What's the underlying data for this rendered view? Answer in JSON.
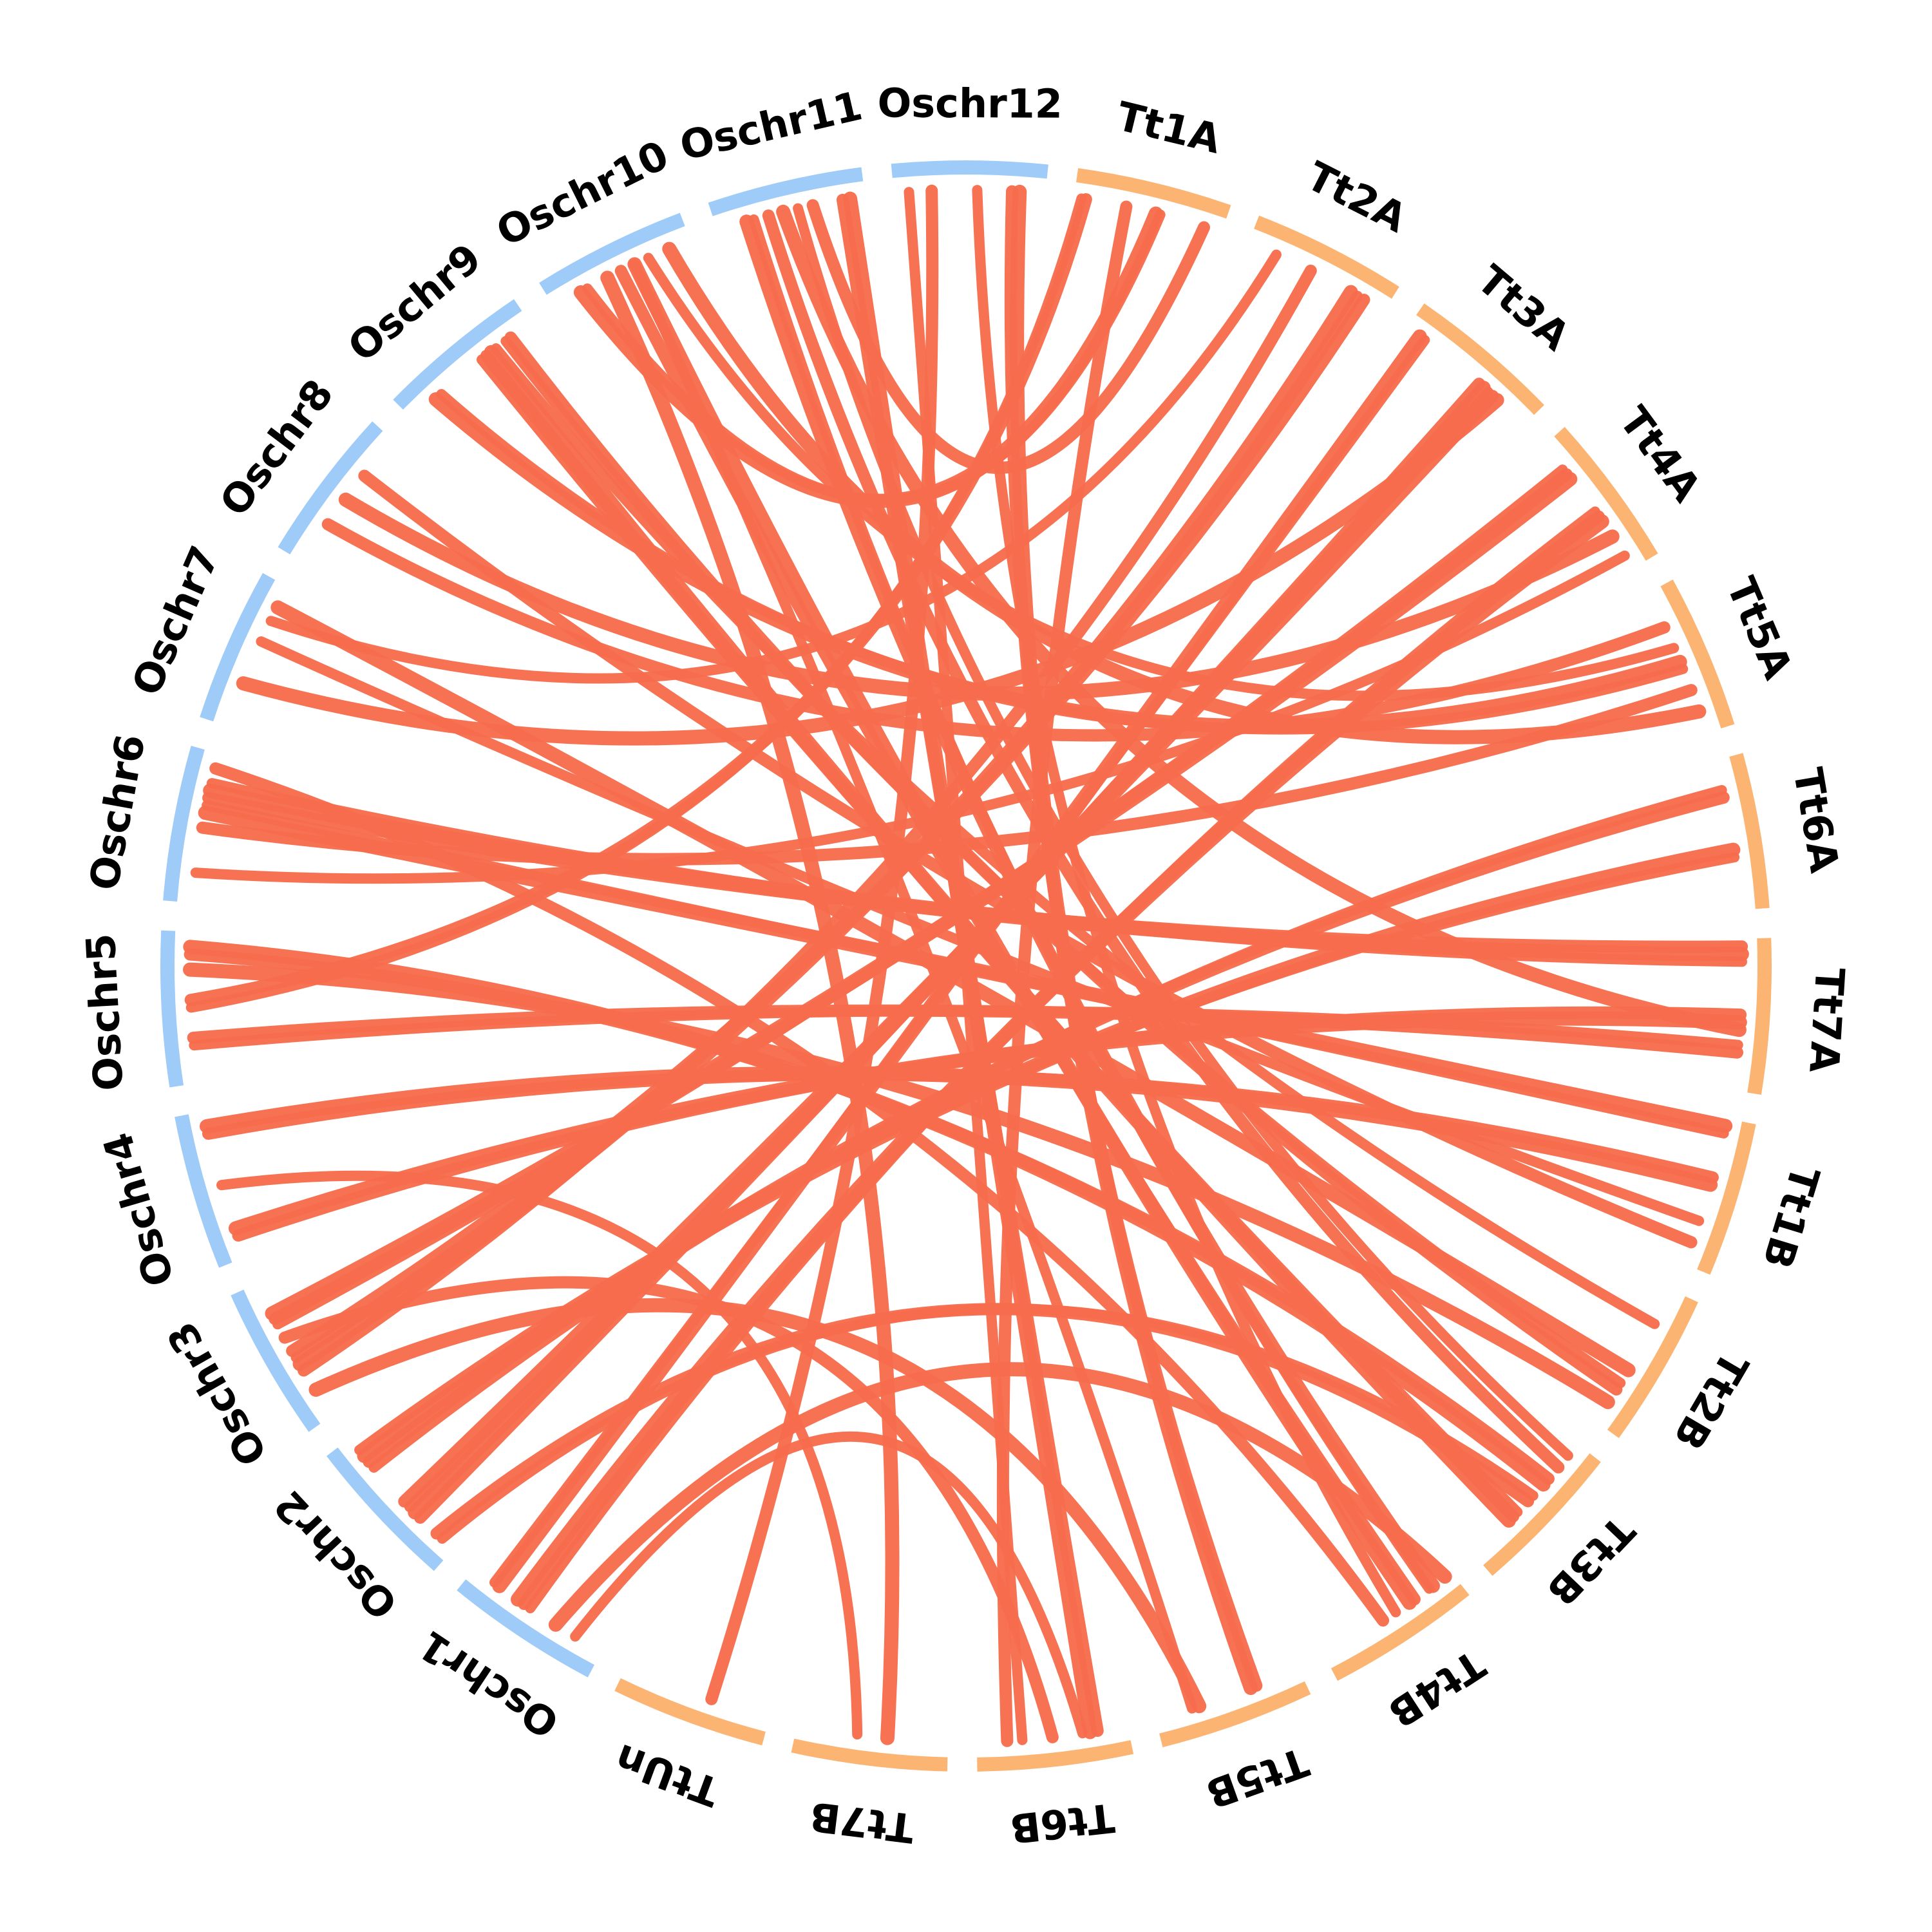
{
  "colors": {
    "rice": "#9ecbf8",
    "wheat": "#fcb472",
    "link": "#f76c4c",
    "label": "#000000"
  },
  "chromosomes": [
    {
      "id": "Tt1A",
      "label": "Tt1A",
      "group": "wheat"
    },
    {
      "id": "Tt2A",
      "label": "Tt2A",
      "group": "wheat"
    },
    {
      "id": "Tt3A",
      "label": "Tt3A",
      "group": "wheat"
    },
    {
      "id": "Tt4A",
      "label": "Tt4A",
      "group": "wheat"
    },
    {
      "id": "Tt5A",
      "label": "Tt5A",
      "group": "wheat"
    },
    {
      "id": "Tt6A",
      "label": "Tt6A",
      "group": "wheat"
    },
    {
      "id": "Tt7A",
      "label": "Tt7A",
      "group": "wheat"
    },
    {
      "id": "Tt1B",
      "label": "Tt1B",
      "group": "wheat"
    },
    {
      "id": "Tt2B",
      "label": "Tt2B",
      "group": "wheat"
    },
    {
      "id": "Tt3B",
      "label": "Tt3B",
      "group": "wheat"
    },
    {
      "id": "Tt4B",
      "label": "Tt4B",
      "group": "wheat"
    },
    {
      "id": "Tt5B",
      "label": "Tt5B",
      "group": "wheat"
    },
    {
      "id": "Tt6B",
      "label": "Tt6B",
      "group": "wheat"
    },
    {
      "id": "Tt7B",
      "label": "Tt7B",
      "group": "wheat"
    },
    {
      "id": "TtUn",
      "label": "TtUn",
      "group": "wheat"
    },
    {
      "id": "Oschr1",
      "label": "Oschr1",
      "group": "rice"
    },
    {
      "id": "Oschr2",
      "label": "Oschr2",
      "group": "rice"
    },
    {
      "id": "Oschr3",
      "label": "Oschr3",
      "group": "rice"
    },
    {
      "id": "Oschr4",
      "label": "Oschr4",
      "group": "rice"
    },
    {
      "id": "Oschr5",
      "label": "Oschr5",
      "group": "rice"
    },
    {
      "id": "Oschr6",
      "label": "Oschr6",
      "group": "rice"
    },
    {
      "id": "Oschr7",
      "label": "Oschr7",
      "group": "rice"
    },
    {
      "id": "Oschr8",
      "label": "Oschr8",
      "group": "rice"
    },
    {
      "id": "Oschr9",
      "label": "Oschr9",
      "group": "rice"
    },
    {
      "id": "Oschr10",
      "label": "Oschr10",
      "group": "rice"
    },
    {
      "id": "Oschr11",
      "label": "Oschr11",
      "group": "rice"
    },
    {
      "id": "Oschr12",
      "label": "Oschr12",
      "group": "rice"
    }
  ],
  "links": [
    {
      "from": "Oschr12",
      "f": 0.1,
      "to": "Tt6B",
      "t": 0.7
    },
    {
      "from": "Oschr12",
      "f": 0.78,
      "to": "Tt5B",
      "t": 0.3
    },
    {
      "from": "Oschr12",
      "f": 0.83,
      "to": "Tt5B",
      "t": 0.34
    },
    {
      "from": "Tt1A",
      "f": 0.05,
      "to": "Oschr5",
      "t": 0.5
    },
    {
      "from": "Tt1A",
      "f": 0.08,
      "to": "Oschr5",
      "t": 0.55
    },
    {
      "from": "Tt1A",
      "f": 0.55,
      "to": "Oschr10",
      "t": 0.2
    },
    {
      "from": "Tt1A",
      "f": 0.58,
      "to": "Oschr10",
      "t": 0.25
    },
    {
      "from": "Tt1A",
      "f": 0.88,
      "to": "Oschr11",
      "t": 0.65
    },
    {
      "from": "Oschr11",
      "f": 0.2,
      "to": "Tt4B",
      "t": 0.15
    },
    {
      "from": "Oschr11",
      "f": 0.25,
      "to": "Tt4B",
      "t": 0.18
    },
    {
      "from": "Oschr11",
      "f": 0.35,
      "to": "Tt3B",
      "t": 0.2
    },
    {
      "from": "Oschr11",
      "f": 0.45,
      "to": "Tt7A",
      "t": 0.6
    },
    {
      "from": "Oschr10",
      "f": 0.7,
      "to": "Tt5A",
      "t": 0.4
    },
    {
      "from": "Oschr10",
      "f": 0.5,
      "to": "Tt4B",
      "t": 0.3
    },
    {
      "from": "Oschr10",
      "f": 0.6,
      "to": "Tt4B",
      "t": 0.34
    },
    {
      "from": "Oschr9",
      "f": 0.6,
      "to": "Tt3B",
      "t": 0.6
    },
    {
      "from": "Oschr9",
      "f": 0.64,
      "to": "Tt3B",
      "t": 0.64
    },
    {
      "from": "Oschr9",
      "f": 0.68,
      "to": "Tt3B",
      "t": 0.68
    },
    {
      "from": "Oschr9",
      "f": 0.72,
      "to": "Tt2B",
      "t": 0.25
    },
    {
      "from": "Tt2A",
      "f": 0.45,
      "to": "Oschr3",
      "t": 0.35
    },
    {
      "from": "Tt2A",
      "f": 0.75,
      "to": "Oschr3",
      "t": 0.4
    },
    {
      "from": "Tt2A",
      "f": 0.8,
      "to": "Oschr3",
      "t": 0.45
    },
    {
      "from": "Tt2A",
      "f": 0.85,
      "to": "Oschr3",
      "t": 0.5
    },
    {
      "from": "Tt3A",
      "f": 0.1,
      "to": "Oschr1",
      "t": 0.8
    },
    {
      "from": "Tt3A",
      "f": 0.14,
      "to": "Oschr1",
      "t": 0.84
    },
    {
      "from": "Tt3A",
      "f": 0.6,
      "to": "Oschr2",
      "t": 0.3
    },
    {
      "from": "Tt3A",
      "f": 0.64,
      "to": "Oschr2",
      "t": 0.35
    },
    {
      "from": "Tt3A",
      "f": 0.68,
      "to": "Oschr2",
      "t": 0.4
    },
    {
      "from": "Tt3A",
      "f": 0.72,
      "to": "Oschr2",
      "t": 0.45
    },
    {
      "from": "Tt3A",
      "f": 0.76,
      "to": "Oschr7",
      "t": 0.3
    },
    {
      "from": "Tt4A",
      "f": 0.2,
      "to": "Oschr3",
      "t": 0.7
    },
    {
      "from": "Tt4A",
      "f": 0.24,
      "to": "Oschr3",
      "t": 0.74
    },
    {
      "from": "Tt4A",
      "f": 0.28,
      "to": "Oschr3",
      "t": 0.78
    },
    {
      "from": "Tt4A",
      "f": 0.55,
      "to": "Oschr1",
      "t": 0.55
    },
    {
      "from": "Tt4A",
      "f": 0.59,
      "to": "Oschr1",
      "t": 0.6
    },
    {
      "from": "Tt4A",
      "f": 0.63,
      "to": "Oschr1",
      "t": 0.65
    },
    {
      "from": "Tt4A",
      "f": 0.9,
      "to": "Oschr6",
      "t": 0.2
    },
    {
      "from": "Tt5A",
      "f": 0.25,
      "to": "Oschr8",
      "t": 0.3
    },
    {
      "from": "Tt5A",
      "f": 0.5,
      "to": "Oschr9",
      "t": 0.2
    },
    {
      "from": "Tt5A",
      "f": 0.55,
      "to": "Oschr9",
      "t": 0.25
    },
    {
      "from": "Tt5A",
      "f": 0.7,
      "to": "Oschr6",
      "t": 0.5
    },
    {
      "from": "Tt5A",
      "f": 0.85,
      "to": "Oschr10",
      "t": 0.85
    },
    {
      "from": "Tt6A",
      "f": 0.2,
      "to": "Oschr2",
      "t": 0.75
    },
    {
      "from": "Tt6A",
      "f": 0.25,
      "to": "Oschr2",
      "t": 0.8
    },
    {
      "from": "Tt6A",
      "f": 0.6,
      "to": "Oschr2",
      "t": 0.85
    },
    {
      "from": "Tt6A",
      "f": 0.65,
      "to": "Oschr2",
      "t": 0.9
    },
    {
      "from": "Tt7A",
      "f": 0.05,
      "to": "Oschr6",
      "t": 0.7
    },
    {
      "from": "Tt7A",
      "f": 0.1,
      "to": "Oschr6",
      "t": 0.75
    },
    {
      "from": "Tt7A",
      "f": 0.15,
      "to": "Oschr6",
      "t": 0.8
    },
    {
      "from": "Tt7A",
      "f": 0.5,
      "to": "Oschr4",
      "t": 0.15
    },
    {
      "from": "Tt7A",
      "f": 0.55,
      "to": "Oschr4",
      "t": 0.2
    },
    {
      "from": "Tt7A",
      "f": 0.7,
      "to": "Oschr5",
      "t": 0.25
    },
    {
      "from": "Tt7A",
      "f": 0.75,
      "to": "Oschr5",
      "t": 0.3
    },
    {
      "from": "Tt1B",
      "f": 0.05,
      "to": "Oschr6",
      "t": 0.6
    },
    {
      "from": "Tt1B",
      "f": 0.1,
      "to": "Oschr6",
      "t": 0.65
    },
    {
      "from": "Tt1B",
      "f": 0.4,
      "to": "Oschr4",
      "t": 0.85
    },
    {
      "from": "Tt1B",
      "f": 0.45,
      "to": "Oschr4",
      "t": 0.9
    },
    {
      "from": "Tt1B",
      "f": 0.7,
      "to": "Oschr7",
      "t": 0.6
    },
    {
      "from": "Tt1B",
      "f": 0.85,
      "to": "Oschr8",
      "t": 0.7
    },
    {
      "from": "Tt2B",
      "f": 0.6,
      "to": "Oschr7",
      "t": 0.85
    },
    {
      "from": "Tt2B",
      "f": 0.7,
      "to": "Oschr9",
      "t": 0.8
    },
    {
      "from": "Tt2B",
      "f": 0.75,
      "to": "Oschr9",
      "t": 0.84
    },
    {
      "from": "Tt2B",
      "f": 0.85,
      "to": "Oschr5",
      "t": 0.75
    },
    {
      "from": "Tt3B",
      "f": 0.1,
      "to": "Oschr11",
      "t": 0.55
    },
    {
      "from": "Tt3B",
      "f": 0.3,
      "to": "Oschr5",
      "t": 0.85
    },
    {
      "from": "Tt3B",
      "f": 0.35,
      "to": "Oschr5",
      "t": 0.9
    },
    {
      "from": "Tt3B",
      "f": 0.45,
      "to": "Oschr2",
      "t": 0.1
    },
    {
      "from": "Tt3B",
      "f": 0.5,
      "to": "Oschr2",
      "t": 0.15
    },
    {
      "from": "Tt4B",
      "f": 0.05,
      "to": "Oschr1",
      "t": 0.35
    },
    {
      "from": "Tt4B",
      "f": 0.45,
      "to": "Oschr12",
      "t": 0.55
    },
    {
      "from": "Tt4B",
      "f": 0.55,
      "to": "Oschr6",
      "t": 0.9
    },
    {
      "from": "Tt5B",
      "f": 0.7,
      "to": "Oschr3",
      "t": 0.2
    },
    {
      "from": "Tt5B",
      "f": 0.75,
      "to": "Oschr10",
      "t": 0.6
    },
    {
      "from": "Tt6B",
      "f": 0.2,
      "to": "Oschr11",
      "t": 0.85
    },
    {
      "from": "Tt6B",
      "f": 0.25,
      "to": "Oschr11",
      "t": 0.9
    },
    {
      "from": "Tt6B",
      "f": 0.3,
      "to": "Oschr1",
      "t": 0.2
    },
    {
      "from": "Tt6B",
      "f": 0.5,
      "to": "Oschr3",
      "t": 0.6
    },
    {
      "from": "Tt7B",
      "f": 0.4,
      "to": "Oschr10",
      "t": 0.4
    },
    {
      "from": "Tt7B",
      "f": 0.6,
      "to": "Oschr4",
      "t": 0.5
    },
    {
      "from": "TtUn",
      "f": 0.4,
      "to": "Oschr12",
      "t": 0.25
    },
    {
      "from": "Tt4A",
      "f": 0.75,
      "to": "Oschr8",
      "t": 0.5
    },
    {
      "from": "Tt2A",
      "f": 0.2,
      "to": "Oschr7",
      "t": 0.75
    },
    {
      "from": "Tt1A",
      "f": 0.35,
      "to": "Tt6B",
      "t": 0.8
    }
  ]
}
